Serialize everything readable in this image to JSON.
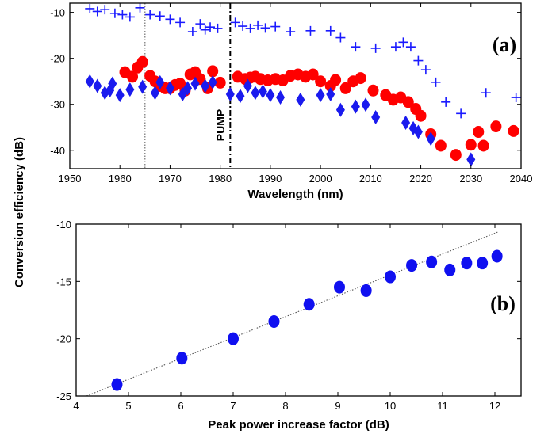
{
  "ylabel": "Conversion efficiency (dB)",
  "colors": {
    "plus": "#1a1aff",
    "circle": "#ff0000",
    "diamond": "#1a1aee",
    "b_points": "#1010f0"
  },
  "chart_data": [
    {
      "type": "scatter",
      "panel_label": "(a)",
      "xlabel": "Wavelength (nm)",
      "xlim": [
        1950,
        2040
      ],
      "ylim": [
        -44,
        -8
      ],
      "xticks": [
        "1950",
        "1960",
        "1970",
        "1980",
        "1990",
        "2000",
        "2010",
        "2020",
        "2030",
        "2040"
      ],
      "yticks": [
        "-10",
        "-20",
        "-30",
        "-40"
      ],
      "grid": false,
      "annotations": [
        {
          "text": "PUMP",
          "x": 1982,
          "style": "dash-dot vertical line"
        },
        {
          "text": "",
          "x": 1965,
          "style": "dotted vertical line"
        }
      ],
      "series": [
        {
          "marker": "plus",
          "points": [
            [
              1954,
              -9.2
            ],
            [
              1955.5,
              -9.8
            ],
            [
              1957,
              -9.4
            ],
            [
              1959,
              -10.2
            ],
            [
              1960.5,
              -10.5
            ],
            [
              1962,
              -11
            ],
            [
              1964,
              -9
            ],
            [
              1966,
              -10.5
            ],
            [
              1968,
              -10.8
            ],
            [
              1970,
              -11.5
            ],
            [
              1972,
              -12.2
            ],
            [
              1974.5,
              -14.2
            ],
            [
              1976,
              -12.5
            ],
            [
              1977,
              -13.8
            ],
            [
              1978,
              -13.2
            ],
            [
              1979.5,
              -13.5
            ],
            [
              1983,
              -12.2
            ],
            [
              1984.5,
              -13
            ],
            [
              1986,
              -13.5
            ],
            [
              1987.5,
              -12.8
            ],
            [
              1989,
              -13.4
            ],
            [
              1991,
              -13.1
            ],
            [
              1994,
              -14.2
            ],
            [
              1998,
              -14
            ],
            [
              2002,
              -14
            ],
            [
              2004,
              -15.5
            ],
            [
              2007,
              -17.5
            ],
            [
              2011,
              -17.8
            ],
            [
              2015,
              -17.5
            ],
            [
              2016.5,
              -16.5
            ],
            [
              2018,
              -17.5
            ],
            [
              2019.5,
              -20.5
            ],
            [
              2021,
              -22.5
            ],
            [
              2023,
              -25.2
            ],
            [
              2025,
              -29.5
            ],
            [
              2028,
              -32
            ],
            [
              2033,
              -27.5
            ],
            [
              2039,
              -28.5
            ]
          ]
        },
        {
          "marker": "circle",
          "points": [
            [
              1961,
              -23
            ],
            [
              1962.5,
              -24
            ],
            [
              1963.5,
              -22
            ],
            [
              1964.5,
              -20.8
            ],
            [
              1966,
              -23.8
            ],
            [
              1967,
              -25
            ],
            [
              1968,
              -26
            ],
            [
              1969,
              -26.5
            ],
            [
              1970,
              -26.5
            ],
            [
              1971,
              -25.8
            ],
            [
              1972,
              -25.5
            ],
            [
              1973,
              -27
            ],
            [
              1974,
              -23.5
            ],
            [
              1975,
              -23
            ],
            [
              1976,
              -24.5
            ],
            [
              1977.5,
              -26.5
            ],
            [
              1978.5,
              -22.8
            ],
            [
              1980,
              -25.3
            ],
            [
              1983.5,
              -24
            ],
            [
              1985,
              -24.5
            ],
            [
              1986,
              -24.2
            ],
            [
              1987,
              -24
            ],
            [
              1988,
              -24.5
            ],
            [
              1989.5,
              -24.8
            ],
            [
              1991,
              -24.5
            ],
            [
              1992.5,
              -24.8
            ],
            [
              1994,
              -23.8
            ],
            [
              1995.5,
              -23.5
            ],
            [
              1997,
              -24
            ],
            [
              1998.5,
              -23.5
            ],
            [
              2000,
              -25
            ],
            [
              2002,
              -26
            ],
            [
              2003,
              -24.7
            ],
            [
              2005,
              -26.5
            ],
            [
              2006.5,
              -25
            ],
            [
              2008,
              -24.3
            ],
            [
              2010.5,
              -27
            ],
            [
              2013,
              -28
            ],
            [
              2014.5,
              -29
            ],
            [
              2016,
              -28.5
            ],
            [
              2017.5,
              -29.5
            ],
            [
              2019,
              -31
            ],
            [
              2020,
              -32.5
            ],
            [
              2022,
              -36.5
            ],
            [
              2024,
              -39
            ],
            [
              2027,
              -41
            ],
            [
              2030,
              -38.8
            ],
            [
              2031.5,
              -36
            ],
            [
              2032.5,
              -39
            ],
            [
              2035,
              -34.8
            ],
            [
              2038.5,
              -35.8
            ]
          ]
        },
        {
          "marker": "diamond",
          "points": [
            [
              1954,
              -25
            ],
            [
              1955.5,
              -26
            ],
            [
              1957,
              -27.5
            ],
            [
              1958,
              -27
            ],
            [
              1958.5,
              -25.5
            ],
            [
              1960,
              -28
            ],
            [
              1962,
              -26.8
            ],
            [
              1964.5,
              -26.2
            ],
            [
              1967,
              -27.5
            ],
            [
              1968,
              -25.2
            ],
            [
              1970,
              -26.5
            ],
            [
              1972.5,
              -27.8
            ],
            [
              1973.5,
              -26.5
            ],
            [
              1975,
              -25.5
            ],
            [
              1977,
              -26
            ],
            [
              1978.5,
              -25.2
            ],
            [
              1982,
              -27.8
            ],
            [
              1984,
              -28.2
            ],
            [
              1985.5,
              -26
            ],
            [
              1987,
              -27.5
            ],
            [
              1988.5,
              -27.2
            ],
            [
              1990,
              -28
            ],
            [
              1992,
              -28.5
            ],
            [
              1996,
              -29
            ],
            [
              2000,
              -28
            ],
            [
              2002,
              -27.8
            ],
            [
              2004,
              -31.2
            ],
            [
              2007,
              -30.5
            ],
            [
              2009,
              -30.1
            ],
            [
              2011,
              -32.8
            ],
            [
              2017,
              -34
            ],
            [
              2018.5,
              -35.2
            ],
            [
              2019.5,
              -36
            ],
            [
              2022,
              -37.5
            ],
            [
              2030,
              -42
            ]
          ]
        }
      ]
    },
    {
      "type": "scatter",
      "panel_label": "(b)",
      "xlabel": "Peak power increase factor (dB)",
      "xlim": [
        4,
        12.5
      ],
      "ylim": [
        -25,
        -10
      ],
      "xticks": [
        "4",
        "5",
        "6",
        "7",
        "8",
        "9",
        "10",
        "11",
        "12"
      ],
      "yticks": [
        "-10",
        "-15",
        "-20",
        "-25"
      ],
      "grid": false,
      "fit_line": {
        "style": "dotted",
        "points": [
          [
            4.2,
            -25
          ],
          [
            12.05,
            -10.7
          ]
        ]
      },
      "series": [
        {
          "marker": "circle",
          "points": [
            [
              4.78,
              -24
            ],
            [
              6.02,
              -21.7
            ],
            [
              7,
              -20
            ],
            [
              7.78,
              -18.5
            ],
            [
              8.45,
              -17
            ],
            [
              9.03,
              -15.5
            ],
            [
              9.54,
              -15.8
            ],
            [
              10,
              -14.6
            ],
            [
              10.41,
              -13.6
            ],
            [
              10.79,
              -13.3
            ],
            [
              11.14,
              -14
            ],
            [
              11.46,
              -13.4
            ],
            [
              11.76,
              -13.4
            ],
            [
              12.04,
              -12.8
            ]
          ]
        }
      ]
    }
  ]
}
